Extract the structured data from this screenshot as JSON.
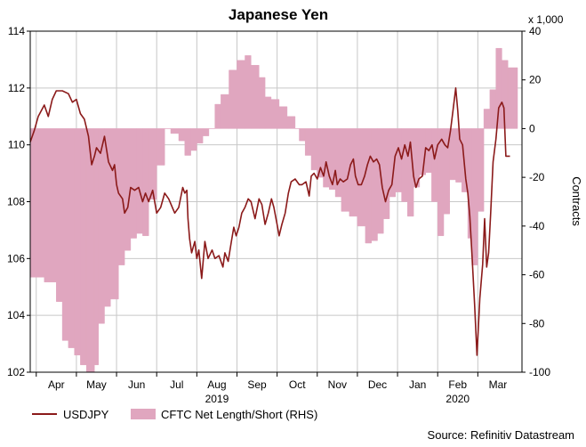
{
  "chart_data": {
    "type": "line+area",
    "title": "Japanese Yen",
    "unit_label": "x 1,000",
    "xlabel": "",
    "ylabel": "",
    "y2label": "Contracts",
    "source": "Source: Refinitiv Datastream",
    "ylim": [
      102,
      114
    ],
    "y2lim": [
      -100,
      40
    ],
    "y_ticks": [
      "102",
      "104",
      "106",
      "108",
      "110",
      "112",
      "114"
    ],
    "y2_ticks": [
      "-100",
      "-80",
      "-60",
      "-40",
      "-20",
      "0",
      "20",
      "40"
    ],
    "x_month_labels": [
      "Apr",
      "May",
      "Jun",
      "Jul",
      "Aug",
      "Sep",
      "Oct",
      "Nov",
      "Dec",
      "Jan",
      "Feb",
      "Mar"
    ],
    "x_month_index": [
      1,
      2,
      3,
      4,
      5,
      6,
      7,
      8,
      9,
      10,
      11,
      12
    ],
    "x_year_labels": [
      {
        "label": "2019",
        "index": 5
      },
      {
        "label": "2020",
        "index": 11
      }
    ],
    "x_range_index": [
      0.35,
      12.6
    ],
    "grid": true,
    "legend": "bottom",
    "series": [
      {
        "name": "USDJPY",
        "kind": "line",
        "axis": "left",
        "color": "#8b1a1a",
        "points": [
          [
            0.35,
            110.1
          ],
          [
            0.45,
            110.5
          ],
          [
            0.55,
            111.0
          ],
          [
            0.7,
            111.4
          ],
          [
            0.8,
            111.0
          ],
          [
            0.9,
            111.6
          ],
          [
            1.0,
            111.9
          ],
          [
            1.15,
            111.9
          ],
          [
            1.3,
            111.8
          ],
          [
            1.4,
            111.5
          ],
          [
            1.5,
            111.6
          ],
          [
            1.6,
            111.1
          ],
          [
            1.7,
            110.9
          ],
          [
            1.8,
            110.3
          ],
          [
            1.88,
            109.3
          ],
          [
            1.95,
            109.6
          ],
          [
            2.0,
            109.9
          ],
          [
            2.1,
            109.7
          ],
          [
            2.2,
            110.3
          ],
          [
            2.3,
            109.4
          ],
          [
            2.4,
            109.1
          ],
          [
            2.45,
            109.3
          ],
          [
            2.5,
            108.6
          ],
          [
            2.55,
            108.3
          ],
          [
            2.65,
            108.1
          ],
          [
            2.7,
            107.6
          ],
          [
            2.78,
            107.8
          ],
          [
            2.85,
            108.5
          ],
          [
            2.95,
            108.4
          ],
          [
            3.05,
            108.5
          ],
          [
            3.15,
            108.0
          ],
          [
            3.22,
            108.3
          ],
          [
            3.3,
            108.0
          ],
          [
            3.4,
            108.4
          ],
          [
            3.5,
            107.6
          ],
          [
            3.6,
            107.8
          ],
          [
            3.7,
            108.3
          ],
          [
            3.8,
            108.1
          ],
          [
            3.95,
            107.6
          ],
          [
            4.05,
            107.8
          ],
          [
            4.15,
            108.5
          ],
          [
            4.2,
            108.3
          ],
          [
            4.25,
            108.4
          ],
          [
            4.28,
            107.4
          ],
          [
            4.32,
            106.7
          ],
          [
            4.37,
            106.2
          ],
          [
            4.45,
            106.6
          ],
          [
            4.5,
            106.0
          ],
          [
            4.55,
            106.3
          ],
          [
            4.62,
            105.3
          ],
          [
            4.7,
            106.6
          ],
          [
            4.78,
            106.0
          ],
          [
            4.88,
            106.3
          ],
          [
            4.95,
            106.0
          ],
          [
            5.05,
            106.1
          ],
          [
            5.15,
            105.7
          ],
          [
            5.2,
            106.2
          ],
          [
            5.28,
            105.9
          ],
          [
            5.36,
            106.6
          ],
          [
            5.42,
            107.1
          ],
          [
            5.48,
            106.8
          ],
          [
            5.55,
            107.1
          ],
          [
            5.62,
            107.6
          ],
          [
            5.7,
            107.8
          ],
          [
            5.78,
            108.1
          ],
          [
            5.85,
            108.0
          ],
          [
            5.95,
            107.4
          ],
          [
            6.05,
            108.1
          ],
          [
            6.12,
            107.9
          ],
          [
            6.2,
            107.2
          ],
          [
            6.28,
            107.6
          ],
          [
            6.36,
            108.1
          ],
          [
            6.42,
            107.8
          ],
          [
            6.5,
            107.2
          ],
          [
            6.55,
            106.8
          ],
          [
            6.62,
            107.2
          ],
          [
            6.7,
            107.6
          ],
          [
            6.78,
            108.3
          ],
          [
            6.85,
            108.7
          ],
          [
            6.95,
            108.8
          ],
          [
            7.05,
            108.6
          ],
          [
            7.12,
            108.6
          ],
          [
            7.22,
            108.7
          ],
          [
            7.3,
            108.2
          ],
          [
            7.35,
            108.9
          ],
          [
            7.42,
            109.0
          ],
          [
            7.5,
            108.8
          ],
          [
            7.58,
            109.2
          ],
          [
            7.66,
            108.9
          ],
          [
            7.72,
            109.4
          ],
          [
            7.8,
            108.9
          ],
          [
            7.88,
            108.6
          ],
          [
            7.95,
            109.1
          ],
          [
            8.0,
            108.6
          ],
          [
            8.07,
            108.8
          ],
          [
            8.15,
            108.7
          ],
          [
            8.25,
            108.8
          ],
          [
            8.33,
            109.3
          ],
          [
            8.4,
            109.5
          ],
          [
            8.45,
            108.9
          ],
          [
            8.52,
            108.6
          ],
          [
            8.6,
            108.6
          ],
          [
            8.68,
            108.9
          ],
          [
            8.75,
            109.3
          ],
          [
            8.82,
            109.6
          ],
          [
            8.9,
            109.4
          ],
          [
            8.98,
            109.5
          ],
          [
            9.05,
            109.3
          ],
          [
            9.12,
            108.5
          ],
          [
            9.2,
            108.0
          ],
          [
            9.28,
            108.4
          ],
          [
            9.36,
            108.6
          ],
          [
            9.44,
            109.6
          ],
          [
            9.52,
            109.9
          ],
          [
            9.6,
            109.5
          ],
          [
            9.68,
            110.0
          ],
          [
            9.76,
            109.6
          ],
          [
            9.82,
            110.1
          ],
          [
            9.9,
            108.9
          ],
          [
            9.96,
            108.5
          ],
          [
            10.03,
            108.8
          ],
          [
            10.12,
            108.9
          ],
          [
            10.2,
            109.9
          ],
          [
            10.28,
            109.8
          ],
          [
            10.36,
            110.0
          ],
          [
            10.42,
            109.5
          ],
          [
            10.5,
            110.0
          ],
          [
            10.6,
            110.2
          ],
          [
            10.68,
            110.0
          ],
          [
            10.75,
            109.9
          ],
          [
            10.82,
            110.5
          ],
          [
            10.88,
            111.2
          ],
          [
            10.95,
            112.0
          ],
          [
            11.0,
            111.2
          ],
          [
            11.05,
            110.2
          ],
          [
            11.12,
            110.0
          ],
          [
            11.2,
            108.8
          ],
          [
            11.25,
            108.3
          ],
          [
            11.3,
            107.5
          ],
          [
            11.36,
            106.0
          ],
          [
            11.42,
            104.4
          ],
          [
            11.48,
            102.6
          ],
          [
            11.55,
            104.6
          ],
          [
            11.62,
            105.8
          ],
          [
            11.67,
            107.4
          ],
          [
            11.72,
            105.7
          ],
          [
            11.77,
            106.2
          ],
          [
            11.82,
            107.6
          ],
          [
            11.88,
            109.4
          ],
          [
            11.95,
            110.2
          ],
          [
            12.02,
            111.3
          ],
          [
            12.1,
            111.5
          ],
          [
            12.15,
            111.3
          ],
          [
            12.2,
            109.6
          ],
          [
            12.3,
            109.6
          ]
        ]
      },
      {
        "name": "CFTC Net Length/Short (RHS)",
        "kind": "step-area",
        "axis": "right",
        "color": "#e0a6bf",
        "points": [
          [
            0.35,
            -61
          ],
          [
            0.7,
            -63
          ],
          [
            1.0,
            -71
          ],
          [
            1.15,
            -87
          ],
          [
            1.3,
            -90
          ],
          [
            1.45,
            -93
          ],
          [
            1.6,
            -97
          ],
          [
            1.75,
            -100
          ],
          [
            1.95,
            -97
          ],
          [
            2.05,
            -80
          ],
          [
            2.2,
            -73
          ],
          [
            2.35,
            -70
          ],
          [
            2.55,
            -56
          ],
          [
            2.7,
            -50
          ],
          [
            2.85,
            -45
          ],
          [
            3.0,
            -43
          ],
          [
            3.15,
            -44
          ],
          [
            3.3,
            -29
          ],
          [
            3.5,
            -15
          ],
          [
            3.7,
            0
          ],
          [
            3.85,
            -2
          ],
          [
            4.05,
            -5
          ],
          [
            4.2,
            -11
          ],
          [
            4.35,
            -9
          ],
          [
            4.5,
            -6
          ],
          [
            4.65,
            -3
          ],
          [
            4.8,
            0
          ],
          [
            4.95,
            10
          ],
          [
            5.1,
            14
          ],
          [
            5.3,
            24
          ],
          [
            5.5,
            28
          ],
          [
            5.7,
            30
          ],
          [
            5.85,
            26
          ],
          [
            6.05,
            21
          ],
          [
            6.2,
            13
          ],
          [
            6.35,
            12
          ],
          [
            6.55,
            9
          ],
          [
            6.75,
            5
          ],
          [
            6.95,
            0
          ],
          [
            7.05,
            -5
          ],
          [
            7.2,
            -11
          ],
          [
            7.35,
            -17
          ],
          [
            7.5,
            -20
          ],
          [
            7.65,
            -24
          ],
          [
            7.8,
            -25
          ],
          [
            7.95,
            -28
          ],
          [
            8.1,
            -34
          ],
          [
            8.3,
            -36
          ],
          [
            8.5,
            -40
          ],
          [
            8.7,
            -47
          ],
          [
            8.85,
            -46
          ],
          [
            9.0,
            -43
          ],
          [
            9.15,
            -37
          ],
          [
            9.3,
            -28
          ],
          [
            9.45,
            -26
          ],
          [
            9.6,
            -30
          ],
          [
            9.75,
            -36
          ],
          [
            9.9,
            -24
          ],
          [
            10.05,
            -19
          ],
          [
            10.2,
            -18
          ],
          [
            10.35,
            -30
          ],
          [
            10.5,
            -44
          ],
          [
            10.65,
            -35
          ],
          [
            10.8,
            -21
          ],
          [
            10.95,
            -22
          ],
          [
            11.1,
            -26
          ],
          [
            11.25,
            -45
          ],
          [
            11.35,
            -56
          ],
          [
            11.5,
            -34
          ],
          [
            11.65,
            8
          ],
          [
            11.8,
            16
          ],
          [
            11.95,
            33
          ],
          [
            12.1,
            28
          ],
          [
            12.25,
            25
          ],
          [
            12.4,
            25
          ]
        ]
      }
    ]
  }
}
